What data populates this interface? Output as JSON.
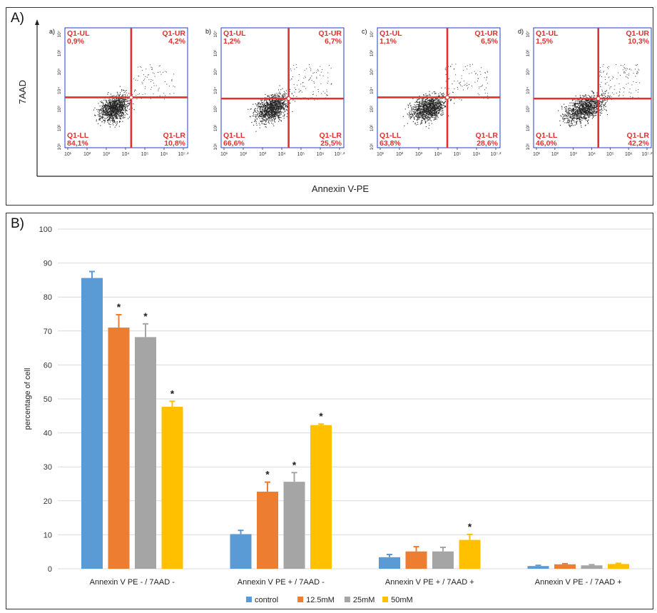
{
  "panel_a": {
    "label": "A)",
    "y_axis_title": "7AAD",
    "x_axis_title": "Annexin V-PE",
    "quadrant_names": {
      "ul": "Q1-UL",
      "ur": "Q1-UR",
      "ll": "Q1-LL",
      "lr": "Q1-LR"
    },
    "x_ticks": [
      "10¹",
      "10²",
      "10³",
      "10⁴",
      "10⁵",
      "10⁶",
      "10⁷·²"
    ],
    "y_ticks": [
      "10¹",
      "10²",
      "10³",
      "10⁴",
      "10⁵",
      "10⁶",
      "10⁷"
    ],
    "plots": [
      {
        "tag": "a)",
        "ul": "0,9%",
        "ur": "4,2%",
        "ll": "84,1%",
        "lr": "10,8%"
      },
      {
        "tag": "b)",
        "ul": "1,2%",
        "ur": "6,7%",
        "ll": "66,6%",
        "lr": "25,5%"
      },
      {
        "tag": "c)",
        "ul": "1,1%",
        "ur": "6,5%",
        "ll": "63,8%",
        "lr": "28,6%"
      },
      {
        "tag": "d)",
        "ul": "1,5%",
        "ur": "10,3%",
        "ll": "46,0%",
        "lr": "42,2%"
      }
    ]
  },
  "panel_b": {
    "label": "B)"
  },
  "colors": {
    "control": "#5b9bd5",
    "c125": "#ed7d31",
    "c25": "#a5a5a5",
    "c50": "#ffc000",
    "quadrant": "#e03030",
    "gate": "#1f3fc4"
  },
  "chart_data": {
    "type": "bar",
    "title": "",
    "xlabel": "",
    "ylabel": "percentage of cell",
    "ylim": [
      0,
      100
    ],
    "yticks": [
      0,
      10,
      20,
      30,
      40,
      50,
      60,
      70,
      80,
      90,
      100
    ],
    "grid": true,
    "legend_position": "bottom",
    "categories": [
      "Annexin V PE - / 7AAD -",
      "Annexin V PE + / 7AAD -",
      "Annexin V PE + / 7AAD +",
      "Annexin V PE - / 7AAD +"
    ],
    "series": [
      {
        "name": "control",
        "color": "#5b9bd5",
        "values": [
          85.6,
          10.2,
          3.4,
          0.8
        ],
        "errors": [
          1.9,
          1.1,
          0.8,
          0.2
        ],
        "significant": [
          false,
          false,
          false,
          false
        ]
      },
      {
        "name": "12.5mM",
        "color": "#ed7d31",
        "values": [
          71.0,
          22.7,
          5.1,
          1.3
        ],
        "errors": [
          3.8,
          2.8,
          1.4,
          0.2
        ],
        "significant": [
          true,
          true,
          false,
          false
        ]
      },
      {
        "name": "25mM",
        "color": "#a5a5a5",
        "values": [
          68.2,
          25.6,
          5.1,
          1.0
        ],
        "errors": [
          3.9,
          2.7,
          1.2,
          0.2
        ],
        "significant": [
          true,
          true,
          false,
          false
        ]
      },
      {
        "name": "50mM",
        "color": "#ffc000",
        "values": [
          47.7,
          42.3,
          8.5,
          1.4
        ],
        "errors": [
          1.6,
          0.3,
          1.6,
          0.2
        ],
        "significant": [
          true,
          true,
          true,
          false
        ]
      }
    ],
    "significance_marker": "*"
  }
}
